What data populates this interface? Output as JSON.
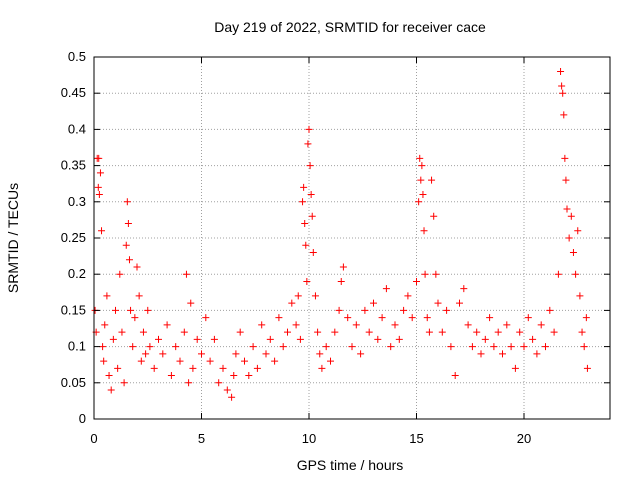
{
  "chart_data": {
    "type": "scatter",
    "title": "Day 219 of 2022, SRMTID for receiver cace",
    "xlabel": "GPS time / hours",
    "ylabel": "SRMTID / TECUs",
    "xlim": [
      0,
      24
    ],
    "ylim": [
      0,
      0.5
    ],
    "xticks": [
      "0",
      "5",
      "10",
      "15",
      "20"
    ],
    "yticks": [
      "0",
      "0.05",
      "0.1",
      "0.15",
      "0.2",
      "0.25",
      "0.3",
      "0.35",
      "0.4",
      "0.45",
      "0.5"
    ],
    "grid": true,
    "marker": "+",
    "color": "#ff0000",
    "series": [
      {
        "name": "SRMTID",
        "points": [
          [
            0.05,
            0.15
          ],
          [
            0.1,
            0.12
          ],
          [
            0.15,
            0.36
          ],
          [
            0.2,
            0.32
          ],
          [
            0.22,
            0.36
          ],
          [
            0.25,
            0.31
          ],
          [
            0.3,
            0.34
          ],
          [
            0.35,
            0.26
          ],
          [
            0.4,
            0.1
          ],
          [
            0.45,
            0.08
          ],
          [
            0.5,
            0.13
          ],
          [
            0.6,
            0.17
          ],
          [
            0.7,
            0.06
          ],
          [
            0.8,
            0.04
          ],
          [
            0.9,
            0.11
          ],
          [
            1.0,
            0.15
          ],
          [
            1.1,
            0.07
          ],
          [
            1.2,
            0.2
          ],
          [
            1.3,
            0.12
          ],
          [
            1.4,
            0.05
          ],
          [
            1.5,
            0.24
          ],
          [
            1.55,
            0.3
          ],
          [
            1.6,
            0.27
          ],
          [
            1.65,
            0.22
          ],
          [
            1.7,
            0.15
          ],
          [
            1.8,
            0.1
          ],
          [
            1.9,
            0.14
          ],
          [
            2.0,
            0.21
          ],
          [
            2.1,
            0.17
          ],
          [
            2.2,
            0.08
          ],
          [
            2.3,
            0.12
          ],
          [
            2.4,
            0.09
          ],
          [
            2.5,
            0.15
          ],
          [
            2.6,
            0.1
          ],
          [
            2.8,
            0.07
          ],
          [
            3.0,
            0.11
          ],
          [
            3.2,
            0.09
          ],
          [
            3.4,
            0.13
          ],
          [
            3.6,
            0.06
          ],
          [
            3.8,
            0.1
          ],
          [
            4.0,
            0.08
          ],
          [
            4.2,
            0.12
          ],
          [
            4.3,
            0.2
          ],
          [
            4.4,
            0.05
          ],
          [
            4.5,
            0.16
          ],
          [
            4.6,
            0.07
          ],
          [
            4.8,
            0.11
          ],
          [
            5.0,
            0.09
          ],
          [
            5.2,
            0.14
          ],
          [
            5.4,
            0.08
          ],
          [
            5.6,
            0.11
          ],
          [
            5.8,
            0.05
          ],
          [
            6.0,
            0.07
          ],
          [
            6.2,
            0.04
          ],
          [
            6.4,
            0.03
          ],
          [
            6.5,
            0.06
          ],
          [
            6.6,
            0.09
          ],
          [
            6.8,
            0.12
          ],
          [
            7.0,
            0.08
          ],
          [
            7.2,
            0.06
          ],
          [
            7.4,
            0.1
          ],
          [
            7.6,
            0.07
          ],
          [
            7.8,
            0.13
          ],
          [
            8.0,
            0.09
          ],
          [
            8.2,
            0.11
          ],
          [
            8.4,
            0.08
          ],
          [
            8.6,
            0.14
          ],
          [
            8.8,
            0.1
          ],
          [
            9.0,
            0.12
          ],
          [
            9.2,
            0.16
          ],
          [
            9.4,
            0.13
          ],
          [
            9.5,
            0.17
          ],
          [
            9.6,
            0.11
          ],
          [
            9.7,
            0.3
          ],
          [
            9.75,
            0.32
          ],
          [
            9.8,
            0.27
          ],
          [
            9.85,
            0.24
          ],
          [
            9.9,
            0.19
          ],
          [
            9.95,
            0.38
          ],
          [
            10.0,
            0.4
          ],
          [
            10.05,
            0.35
          ],
          [
            10.1,
            0.31
          ],
          [
            10.15,
            0.28
          ],
          [
            10.2,
            0.23
          ],
          [
            10.3,
            0.17
          ],
          [
            10.4,
            0.12
          ],
          [
            10.5,
            0.09
          ],
          [
            10.6,
            0.07
          ],
          [
            10.8,
            0.1
          ],
          [
            11.0,
            0.08
          ],
          [
            11.2,
            0.12
          ],
          [
            11.4,
            0.15
          ],
          [
            11.5,
            0.19
          ],
          [
            11.6,
            0.21
          ],
          [
            11.8,
            0.14
          ],
          [
            12.0,
            0.1
          ],
          [
            12.2,
            0.13
          ],
          [
            12.4,
            0.09
          ],
          [
            12.6,
            0.15
          ],
          [
            12.8,
            0.12
          ],
          [
            13.0,
            0.16
          ],
          [
            13.2,
            0.11
          ],
          [
            13.4,
            0.14
          ],
          [
            13.6,
            0.18
          ],
          [
            13.8,
            0.1
          ],
          [
            14.0,
            0.13
          ],
          [
            14.2,
            0.11
          ],
          [
            14.4,
            0.15
          ],
          [
            14.6,
            0.17
          ],
          [
            14.8,
            0.14
          ],
          [
            15.0,
            0.19
          ],
          [
            15.1,
            0.3
          ],
          [
            15.15,
            0.36
          ],
          [
            15.2,
            0.33
          ],
          [
            15.25,
            0.35
          ],
          [
            15.3,
            0.31
          ],
          [
            15.35,
            0.26
          ],
          [
            15.4,
            0.2
          ],
          [
            15.5,
            0.14
          ],
          [
            15.6,
            0.12
          ],
          [
            15.7,
            0.33
          ],
          [
            15.8,
            0.28
          ],
          [
            15.9,
            0.2
          ],
          [
            16.0,
            0.16
          ],
          [
            16.2,
            0.12
          ],
          [
            16.4,
            0.15
          ],
          [
            16.6,
            0.1
          ],
          [
            16.8,
            0.06
          ],
          [
            17.0,
            0.16
          ],
          [
            17.2,
            0.18
          ],
          [
            17.4,
            0.13
          ],
          [
            17.6,
            0.1
          ],
          [
            17.8,
            0.12
          ],
          [
            18.0,
            0.09
          ],
          [
            18.2,
            0.11
          ],
          [
            18.4,
            0.14
          ],
          [
            18.6,
            0.1
          ],
          [
            18.8,
            0.12
          ],
          [
            19.0,
            0.09
          ],
          [
            19.2,
            0.13
          ],
          [
            19.4,
            0.1
          ],
          [
            19.6,
            0.07
          ],
          [
            19.8,
            0.12
          ],
          [
            20.0,
            0.1
          ],
          [
            20.2,
            0.14
          ],
          [
            20.4,
            0.11
          ],
          [
            20.6,
            0.09
          ],
          [
            20.8,
            0.13
          ],
          [
            21.0,
            0.1
          ],
          [
            21.2,
            0.15
          ],
          [
            21.4,
            0.12
          ],
          [
            21.6,
            0.2
          ],
          [
            21.7,
            0.48
          ],
          [
            21.75,
            0.46
          ],
          [
            21.8,
            0.45
          ],
          [
            21.85,
            0.42
          ],
          [
            21.9,
            0.36
          ],
          [
            21.95,
            0.33
          ],
          [
            22.0,
            0.29
          ],
          [
            22.1,
            0.25
          ],
          [
            22.2,
            0.28
          ],
          [
            22.3,
            0.23
          ],
          [
            22.4,
            0.2
          ],
          [
            22.5,
            0.26
          ],
          [
            22.6,
            0.17
          ],
          [
            22.7,
            0.12
          ],
          [
            22.8,
            0.1
          ],
          [
            22.9,
            0.14
          ],
          [
            22.95,
            0.07
          ]
        ]
      }
    ]
  }
}
